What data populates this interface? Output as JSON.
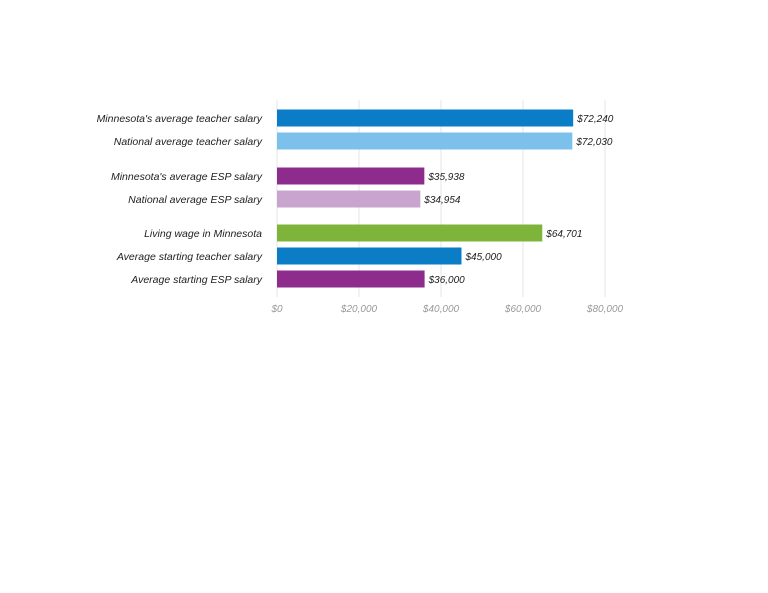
{
  "chart_data": {
    "type": "bar",
    "orientation": "horizontal",
    "title": "",
    "xlabel": "",
    "ylabel": "",
    "xlim": [
      0,
      80000
    ],
    "grid": true,
    "categories": [
      "Minnesota's average teacher salary",
      "National average teacher salary",
      "Minnesota's average ESP salary",
      "National average ESP salary",
      "Living wage in Minnesota",
      "Average starting teacher salary",
      "Average starting ESP salary"
    ],
    "values": [
      72240,
      72030,
      35938,
      34954,
      64701,
      45000,
      36000
    ],
    "value_labels": [
      "$72,240",
      "$72,030",
      "$35,938",
      "$34,954",
      "$64,701",
      "$45,000",
      "$36,000"
    ],
    "colors": [
      "#0a7dc6",
      "#7cc1ec",
      "#8e2c8e",
      "#c9a4cf",
      "#7fb43a",
      "#0a7dc6",
      "#8e2c8e"
    ],
    "x_ticks": [
      0,
      20000,
      40000,
      60000,
      80000
    ],
    "x_tick_labels": [
      "$0",
      "$20,000",
      "$40,000",
      "$60,000",
      "$80,000"
    ]
  }
}
